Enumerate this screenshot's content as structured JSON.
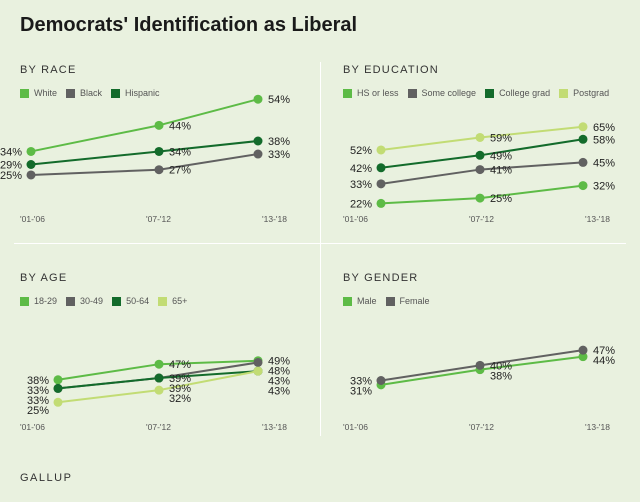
{
  "title": "Democrats' Identification as Liberal",
  "footer": "GALLUP",
  "chart_data": [
    {
      "type": "line",
      "title": "BY RACE",
      "categories": [
        "'01-'06",
        "'07-'12",
        "'13-'18"
      ],
      "series": [
        {
          "name": "White",
          "color": "#5dbb46",
          "values": [
            34,
            44,
            54
          ]
        },
        {
          "name": "Black",
          "color": "#616161",
          "values": [
            25,
            27,
            33
          ]
        },
        {
          "name": "Hispanic",
          "color": "#136b2b",
          "values": [
            29,
            34,
            38
          ]
        }
      ]
    },
    {
      "type": "line",
      "title": "BY EDUCATION",
      "categories": [
        "'01-'06",
        "'07-'12",
        "'13-'18"
      ],
      "series": [
        {
          "name": "HS or less",
          "color": "#5dbb46",
          "values": [
            22,
            25,
            32
          ]
        },
        {
          "name": "Some college",
          "color": "#616161",
          "values": [
            33,
            41,
            45
          ]
        },
        {
          "name": "College grad",
          "color": "#136b2b",
          "values": [
            42,
            49,
            58
          ]
        },
        {
          "name": "Postgrad",
          "color": "#c2dc74",
          "values": [
            52,
            59,
            65
          ]
        }
      ]
    },
    {
      "type": "line",
      "title": "BY AGE",
      "categories": [
        "'01-'06",
        "'07-'12",
        "'13-'18"
      ],
      "series": [
        {
          "name": "18-29",
          "color": "#5dbb46",
          "values": [
            38,
            47,
            49
          ]
        },
        {
          "name": "30-49",
          "color": "#616161",
          "values": [
            33,
            39,
            48
          ]
        },
        {
          "name": "50-64",
          "color": "#136b2b",
          "values": [
            33,
            39,
            43
          ]
        },
        {
          "name": "65+",
          "color": "#c2dc74",
          "values": [
            25,
            32,
            43
          ]
        }
      ]
    },
    {
      "type": "line",
      "title": "BY GENDER",
      "categories": [
        "'01-'06",
        "'07-'12",
        "'13-'18"
      ],
      "series": [
        {
          "name": "Male",
          "color": "#5dbb46",
          "values": [
            31,
            38,
            44
          ]
        },
        {
          "name": "Female",
          "color": "#616161",
          "values": [
            33,
            40,
            47
          ]
        }
      ]
    }
  ]
}
